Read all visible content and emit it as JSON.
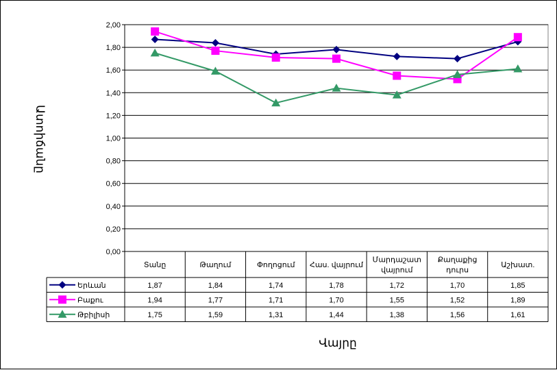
{
  "chart_data": {
    "type": "line",
    "xlabel": "Վայրը",
    "ylabel": "Ատոիճանը",
    "ylim": [
      0,
      2
    ],
    "y_ticks": [
      "0,00",
      "0,20",
      "0,40",
      "0,60",
      "0,80",
      "1,00",
      "1,20",
      "1,40",
      "1,60",
      "1,80",
      "2,00"
    ],
    "grid": true,
    "legend_placement": "data-table-left",
    "categories": [
      [
        "Տանը"
      ],
      [
        "Թաղում"
      ],
      [
        "Փողոցում"
      ],
      [
        "Հաս. վայրում"
      ],
      [
        "Մարդաշատ",
        "վայրում"
      ],
      [
        "Քաղաքից",
        "դուրս"
      ],
      [
        "Աշխատ."
      ]
    ],
    "series": [
      {
        "name": "Երևան",
        "color": "#000080",
        "marker": "diamond",
        "values": [
          1.87,
          1.84,
          1.74,
          1.78,
          1.72,
          1.7,
          1.85
        ],
        "labels": [
          "1,87",
          "1,84",
          "1,74",
          "1,78",
          "1,72",
          "1,70",
          "1,85"
        ]
      },
      {
        "name": "Բաքու",
        "color": "#ff00ff",
        "marker": "square",
        "values": [
          1.94,
          1.77,
          1.71,
          1.7,
          1.55,
          1.52,
          1.89
        ],
        "labels": [
          "1,94",
          "1,77",
          "1,71",
          "1,70",
          "1,55",
          "1,52",
          "1,89"
        ]
      },
      {
        "name": "Թբիլիսի",
        "color": "#339966",
        "marker": "triangle",
        "values": [
          1.75,
          1.59,
          1.31,
          1.44,
          1.38,
          1.56,
          1.61
        ],
        "labels": [
          "1,75",
          "1,59",
          "1,31",
          "1,44",
          "1,38",
          "1,56",
          "1,61"
        ]
      }
    ]
  }
}
